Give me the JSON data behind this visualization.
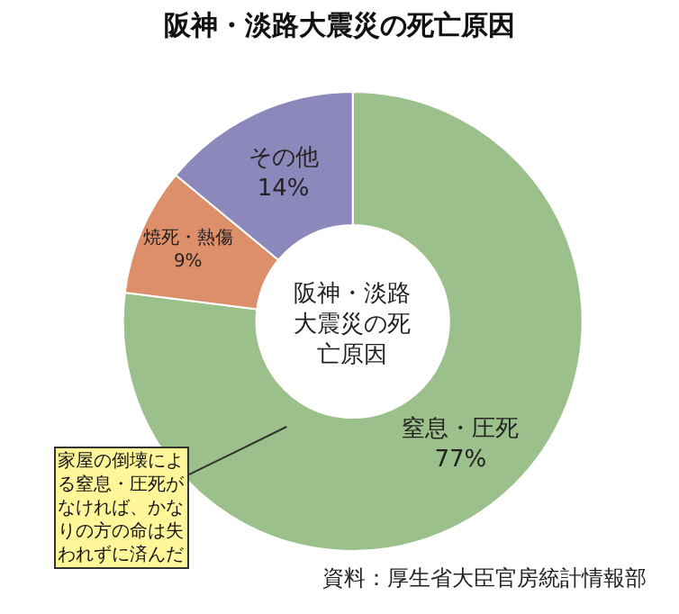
{
  "chart_data": {
    "type": "donut",
    "title": "阪神・淡路大震災の死亡原因",
    "categories": [
      "窒息・圧死",
      "焼死・熱傷",
      "その他"
    ],
    "values": [
      77,
      9,
      14
    ],
    "value_labels": [
      "77%",
      "9%",
      "14%"
    ],
    "colors": [
      "#9cc08c",
      "#dc8f68",
      "#8c88bb"
    ],
    "annotations": [
      "阪神・淡路大震災の死亡原因",
      "家屋の倒壊による窒息・圧死がなければ、かなりの方の命は失われずに済んだ",
      "資料：厚生省大臣官房統計情報部"
    ]
  }
}
